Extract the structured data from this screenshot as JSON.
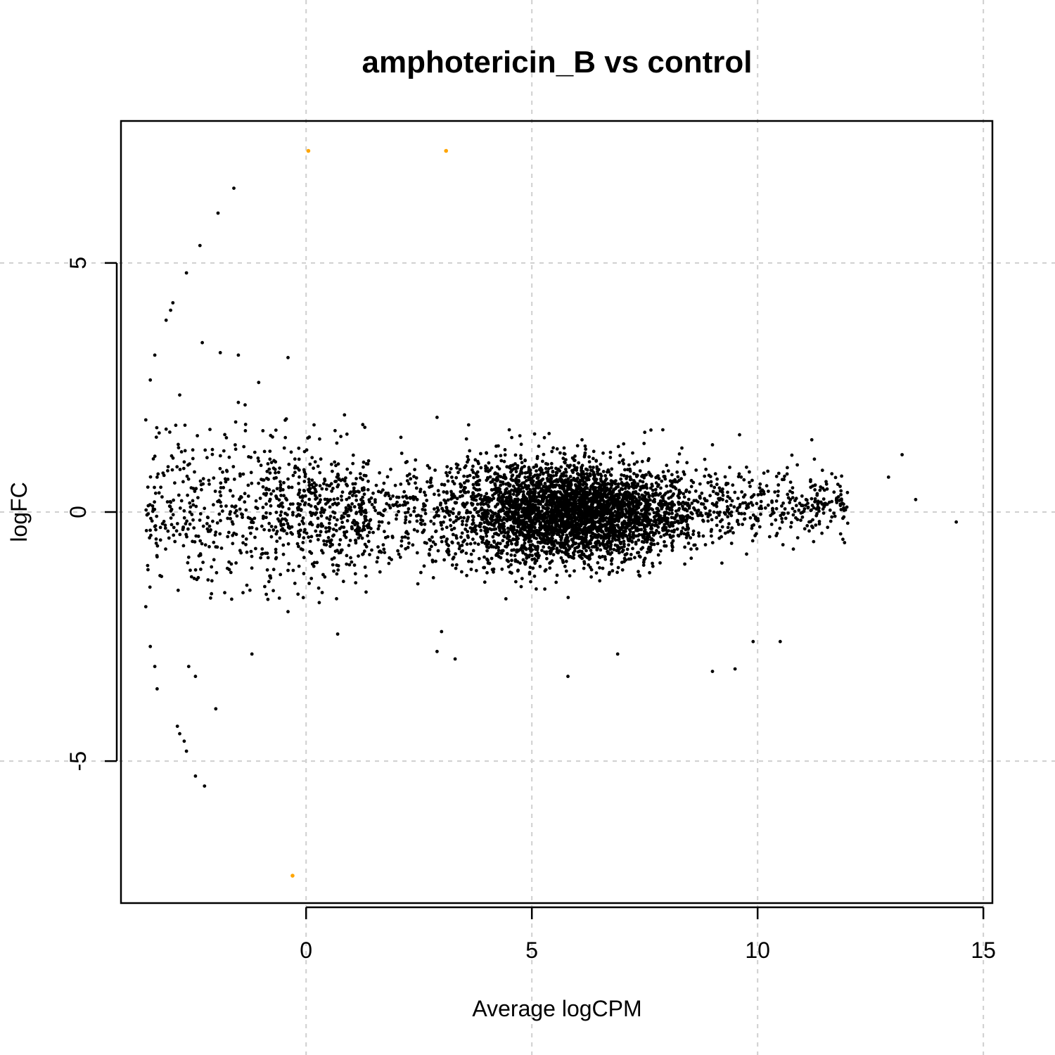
{
  "chart_data": {
    "type": "scatter",
    "title": "amphotericin_B vs control",
    "xlabel": "Average logCPM",
    "ylabel": "logFC",
    "xlim": [
      -4.1,
      15.2
    ],
    "ylim": [
      -7.85,
      7.85
    ],
    "x_ticks": [
      0,
      5,
      10,
      15
    ],
    "x_tick_labels": [
      "0",
      "5",
      "10",
      "15"
    ],
    "y_ticks": [
      -5,
      0,
      5
    ],
    "y_tick_labels": [
      "-5",
      "0",
      "5"
    ],
    "grid": true,
    "colors": {
      "point": "#000000",
      "highlight": "#FFA500",
      "grid": "#cfcfcf"
    },
    "highlighted_points": [
      {
        "x": 0.05,
        "y": 7.25
      },
      {
        "x": 3.1,
        "y": 7.25
      },
      {
        "x": -0.3,
        "y": -7.3
      }
    ],
    "outlier_points": [
      {
        "x": -1.6,
        "y": 6.5
      },
      {
        "x": -1.95,
        "y": 6.0
      },
      {
        "x": -2.35,
        "y": 5.35
      },
      {
        "x": -2.65,
        "y": 4.8
      },
      {
        "x": -2.95,
        "y": 4.2
      },
      {
        "x": -3.0,
        "y": 4.05
      },
      {
        "x": -3.1,
        "y": 3.85
      },
      {
        "x": -3.35,
        "y": 3.15
      },
      {
        "x": -3.45,
        "y": 2.65
      },
      {
        "x": -2.3,
        "y": 3.4
      },
      {
        "x": -1.9,
        "y": 3.2
      },
      {
        "x": -1.5,
        "y": 3.15
      },
      {
        "x": -0.4,
        "y": 3.1
      },
      {
        "x": -1.05,
        "y": 2.6
      },
      {
        "x": -2.8,
        "y": 2.35
      },
      {
        "x": -1.5,
        "y": 2.2
      },
      {
        "x": -1.35,
        "y": 2.15
      },
      {
        "x": -3.3,
        "y": -0.9
      },
      {
        "x": -3.55,
        "y": -1.9
      },
      {
        "x": -3.45,
        "y": -2.7
      },
      {
        "x": -3.35,
        "y": -3.1
      },
      {
        "x": -3.3,
        "y": -3.55
      },
      {
        "x": -2.6,
        "y": -3.1
      },
      {
        "x": -2.45,
        "y": -3.3
      },
      {
        "x": -2.0,
        "y": -3.95
      },
      {
        "x": -2.85,
        "y": -4.3
      },
      {
        "x": -2.8,
        "y": -4.45
      },
      {
        "x": -2.7,
        "y": -4.6
      },
      {
        "x": -2.65,
        "y": -4.8
      },
      {
        "x": -2.45,
        "y": -5.3
      },
      {
        "x": -2.25,
        "y": -5.5
      },
      {
        "x": -1.2,
        "y": -2.85
      },
      {
        "x": -0.4,
        "y": -2.0
      },
      {
        "x": 0.7,
        "y": -2.45
      },
      {
        "x": 2.9,
        "y": -2.8
      },
      {
        "x": 3.3,
        "y": -2.95
      },
      {
        "x": 3.0,
        "y": -2.4
      },
      {
        "x": 5.8,
        "y": -3.3
      },
      {
        "x": 6.9,
        "y": -2.85
      },
      {
        "x": 9.0,
        "y": -3.2
      },
      {
        "x": 9.5,
        "y": -3.15
      },
      {
        "x": 9.9,
        "y": -2.6
      },
      {
        "x": 10.5,
        "y": -2.6
      },
      {
        "x": 13.2,
        "y": 1.15
      },
      {
        "x": 13.5,
        "y": 0.25
      },
      {
        "x": 14.4,
        "y": -0.2
      },
      {
        "x": 12.9,
        "y": 0.7
      },
      {
        "x": 11.2,
        "y": 1.45
      },
      {
        "x": 9.6,
        "y": 1.55
      },
      {
        "x": 2.9,
        "y": 1.9
      },
      {
        "x": 0.85,
        "y": 1.95
      },
      {
        "x": -3.55,
        "y": 1.85
      },
      {
        "x": -3.3,
        "y": 0.7
      },
      {
        "x": 7.5,
        "y": 1.6
      },
      {
        "x": 7.9,
        "y": 1.65
      },
      {
        "x": 9.0,
        "y": 1.35
      },
      {
        "x": 2.1,
        "y": 1.5
      },
      {
        "x": 4.5,
        "y": 1.65
      },
      {
        "x": 3.6,
        "y": 1.75
      },
      {
        "x": 1.3,
        "y": 1.7
      }
    ],
    "bulk_distribution": {
      "count": 5200,
      "center_x": 5.9,
      "center_y": 0.0,
      "x_range": [
        -3.55,
        13.1
      ],
      "note_points": "dense cloud of black points centred near logFC 0, widest spread at low logCPM"
    }
  }
}
